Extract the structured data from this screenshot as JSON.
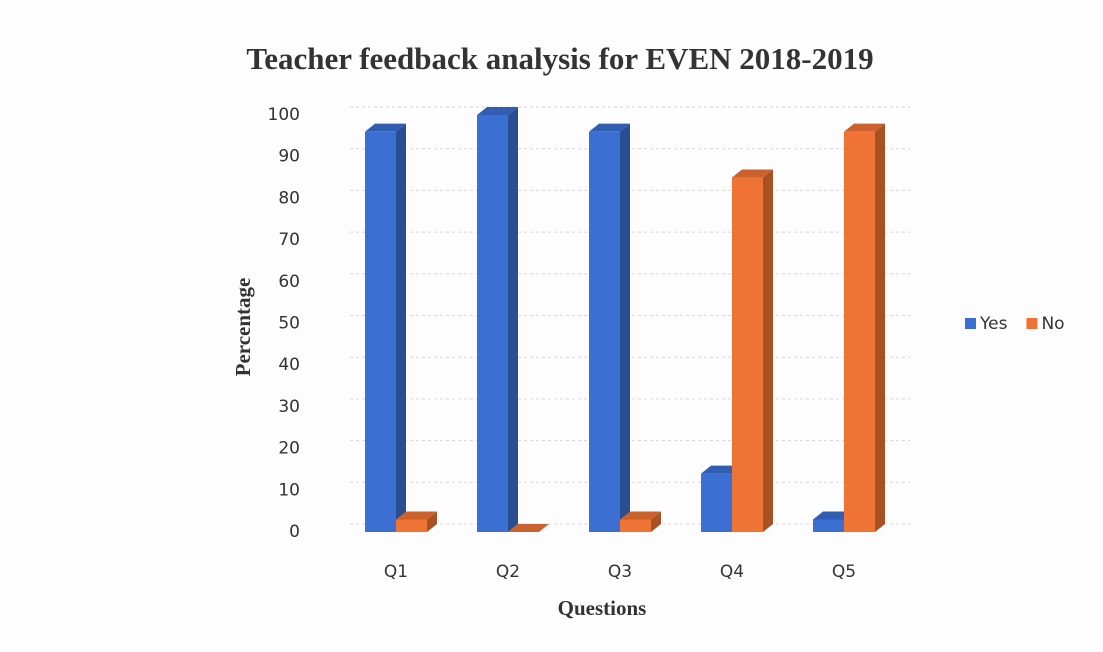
{
  "chart_data": {
    "type": "bar3d",
    "title": "Teacher feedback analysis for EVEN 2018-2019",
    "x_label": "Questions",
    "y_label": "Percentage",
    "categories": [
      "Q1",
      "Q2",
      "Q3",
      "Q4",
      "Q5"
    ],
    "series": [
      {
        "name": "Yes",
        "color": "#3b6fd1",
        "values": [
          96,
          100,
          96,
          14,
          3
        ]
      },
      {
        "name": "No",
        "color": "#ef7335",
        "values": [
          3,
          0,
          3,
          85,
          96
        ]
      }
    ],
    "ylim": [
      0,
      100
    ],
    "yticks": [
      0,
      10,
      20,
      30,
      40,
      50,
      60,
      70,
      80,
      90,
      100
    ],
    "grid": true,
    "legend": "right"
  }
}
